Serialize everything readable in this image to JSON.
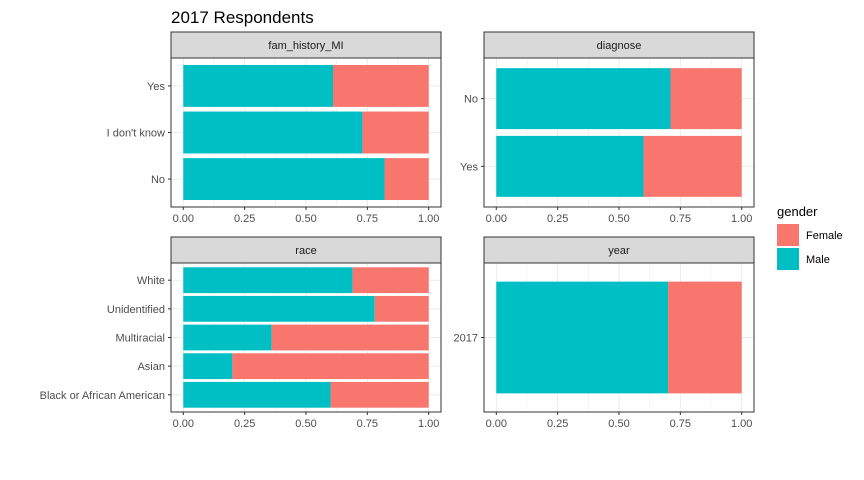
{
  "colors": {
    "male": "#00BFC4",
    "female": "#F8766D",
    "strip_bg": "#D9D9D9",
    "border": "#333333",
    "grid": "#EBEBEB",
    "background": "#FFFFFF"
  },
  "chart_data": {
    "type": "bar",
    "orientation": "horizontal-stacked",
    "title": "2017 Respondents",
    "xlim": [
      0,
      1
    ],
    "xticks": [
      "0.00",
      "0.25",
      "0.50",
      "0.75",
      "1.00"
    ],
    "legend": {
      "title": "gender",
      "position": "right",
      "entries": [
        "Female",
        "Male"
      ]
    },
    "grid": true,
    "facets": [
      {
        "strip": "fam_history_MI",
        "categories": [
          "Yes",
          "I don't know",
          "No"
        ],
        "series": [
          {
            "name": "Male",
            "values": [
              0.61,
              0.73,
              0.82
            ]
          },
          {
            "name": "Female",
            "values": [
              0.39,
              0.27,
              0.18
            ]
          }
        ]
      },
      {
        "strip": "diagnose",
        "categories": [
          "No",
          "Yes"
        ],
        "series": [
          {
            "name": "Male",
            "values": [
              0.71,
              0.6
            ]
          },
          {
            "name": "Female",
            "values": [
              0.29,
              0.4
            ]
          }
        ]
      },
      {
        "strip": "race",
        "categories": [
          "White",
          "Unidentified",
          "Multiracial",
          "Asian",
          "Black or African American"
        ],
        "series": [
          {
            "name": "Male",
            "values": [
              0.69,
              0.78,
              0.36,
              0.2,
              0.6
            ]
          },
          {
            "name": "Female",
            "values": [
              0.31,
              0.22,
              0.64,
              0.8,
              0.4
            ]
          }
        ]
      },
      {
        "strip": "year",
        "categories": [
          "2017"
        ],
        "series": [
          {
            "name": "Male",
            "values": [
              0.7
            ]
          },
          {
            "name": "Female",
            "values": [
              0.3
            ]
          }
        ]
      }
    ]
  }
}
